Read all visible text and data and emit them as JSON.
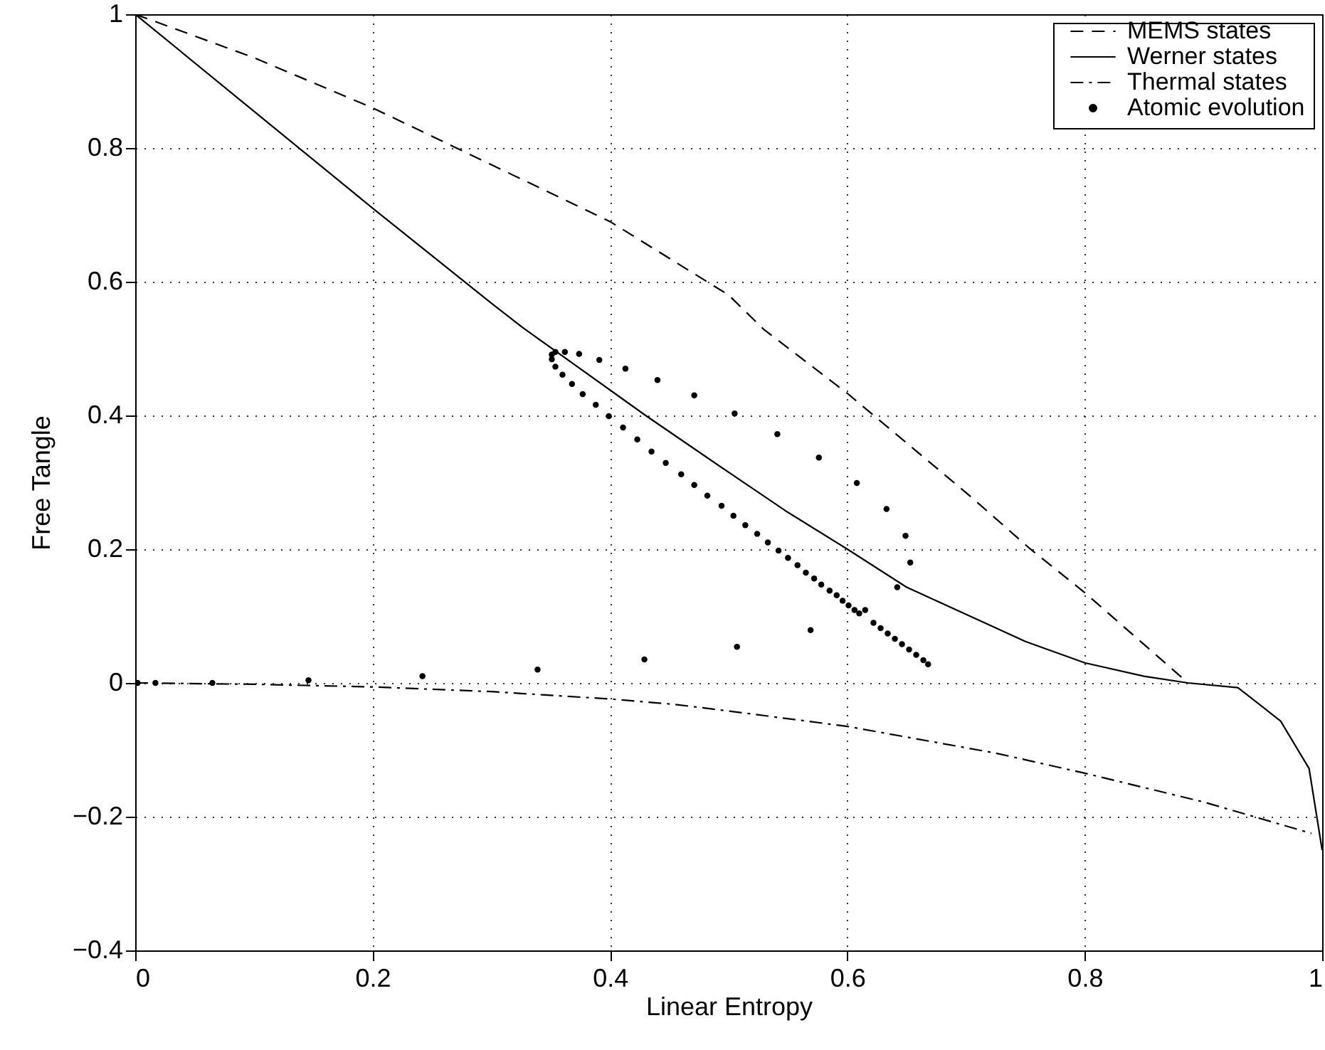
{
  "chart_data": {
    "type": "line",
    "xlabel": "Linear Entropy",
    "ylabel": "Free Tangle",
    "xlim": [
      0,
      1
    ],
    "ylim": [
      -0.4,
      1
    ],
    "xticks": [
      0,
      0.2,
      0.4,
      0.6,
      0.8,
      1
    ],
    "yticks": [
      {
        "value": -0.4,
        "label": "−0.4"
      },
      {
        "value": -0.2,
        "label": "−0.2"
      },
      0,
      0.2,
      0.4,
      0.6,
      0.8,
      1
    ],
    "grid": true,
    "legend": "top right",
    "series": [
      {
        "name": "MEMS states",
        "type": "line",
        "line_style": "dashed",
        "color": "#000000",
        "x": [
          0,
          0.1,
          0.2,
          0.3,
          0.4,
          0.5,
          0.53,
          0.58,
          0.6,
          0.705,
          0.753,
          0.8,
          0.887
        ],
        "values": [
          1,
          0.935,
          0.86,
          0.775,
          0.69,
          0.58,
          0.528,
          0.46,
          0.433,
          0.277,
          0.202,
          0.135,
          0.0
        ]
      },
      {
        "name": "Werner states",
        "type": "line",
        "line_style": "solid",
        "color": "#000000",
        "x": [
          0,
          0.1,
          0.2,
          0.3,
          0.326,
          0.43,
          0.5,
          0.55,
          0.6,
          0.65,
          0.713,
          0.75,
          0.8,
          0.85,
          0.887,
          0.929,
          0.965,
          0.989,
          1
        ],
        "values": [
          1,
          0.855,
          0.71,
          0.568,
          0.532,
          0.4,
          0.315,
          0.255,
          0.2,
          0.143,
          0.092,
          0.062,
          0.03,
          0.01,
          0.0,
          -0.007,
          -0.057,
          -0.128,
          -0.25
        ]
      },
      {
        "name": "Thermal states",
        "type": "line",
        "line_style": "dashdot",
        "color": "#000000",
        "x": [
          0,
          0.1,
          0.2,
          0.3,
          0.4,
          0.454,
          0.5,
          0.6,
          0.725,
          0.8,
          0.9,
          0.991
        ],
        "values": [
          0,
          -0.002,
          -0.006,
          -0.013,
          -0.024,
          -0.032,
          -0.042,
          -0.065,
          -0.105,
          -0.135,
          -0.178,
          -0.225
        ]
      },
      {
        "name": "Atomic evolution",
        "type": "scatter",
        "marker": "circle",
        "color": "#000000",
        "x": [
          0.002,
          0.017,
          0.065,
          0.146,
          0.242,
          0.339,
          0.429,
          0.507,
          0.569,
          0.642,
          0.653,
          0.649,
          0.633,
          0.608,
          0.576,
          0.541,
          0.505,
          0.471,
          0.44,
          0.413,
          0.391,
          0.374,
          0.362,
          0.354,
          0.351,
          0.351,
          0.354,
          0.36,
          0.368,
          0.377,
          0.388,
          0.399,
          0.411,
          0.423,
          0.435,
          0.447,
          0.46,
          0.471,
          0.482,
          0.494,
          0.504,
          0.514,
          0.524,
          0.533,
          0.542,
          0.55,
          0.558,
          0.565,
          0.572,
          0.578,
          0.585,
          0.591,
          0.596,
          0.601,
          0.606,
          0.61,
          0.615,
          0.622,
          0.628,
          0.634,
          0.64,
          0.646,
          0.652,
          0.658,
          0.664,
          0.668
        ],
        "values": [
          0,
          0,
          0,
          0.004,
          0.01,
          0.02,
          0.035,
          0.054,
          0.079,
          0.143,
          0.18,
          0.22,
          0.26,
          0.299,
          0.337,
          0.372,
          0.403,
          0.43,
          0.453,
          0.47,
          0.483,
          0.492,
          0.495,
          0.495,
          0.491,
          0.484,
          0.473,
          0.461,
          0.447,
          0.432,
          0.416,
          0.399,
          0.382,
          0.364,
          0.346,
          0.329,
          0.312,
          0.296,
          0.28,
          0.265,
          0.25,
          0.236,
          0.223,
          0.21,
          0.198,
          0.187,
          0.176,
          0.165,
          0.156,
          0.147,
          0.138,
          0.131,
          0.123,
          0.116,
          0.109,
          0.104,
          0.109,
          0.09,
          0.082,
          0.074,
          0.066,
          0.058,
          0.05,
          0.042,
          0.034,
          0.028
        ]
      }
    ]
  }
}
